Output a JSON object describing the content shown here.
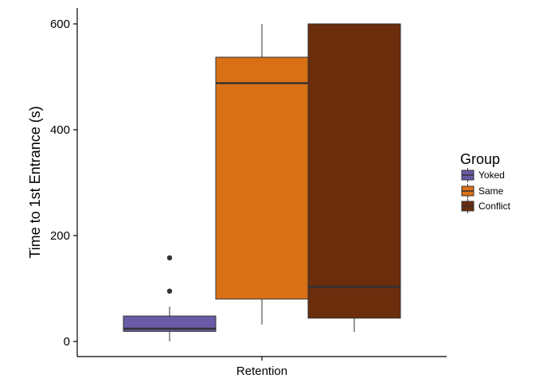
{
  "chart_data": {
    "type": "box",
    "title": "",
    "xlabel": "",
    "ylabel": "Time to 1st Entrance (s)",
    "categories": [
      "Retention"
    ],
    "ylim": [
      -25,
      630
    ],
    "yticks": [
      0,
      200,
      400,
      600
    ],
    "grid": false,
    "legend": {
      "title": "Group",
      "position": "right"
    },
    "series": [
      {
        "name": "Yoked",
        "color": "#6a5aa6",
        "whisker_low": 0,
        "q1": 19,
        "median": 24,
        "q3": 48,
        "whisker_high": 66,
        "outliers": [
          95,
          158
        ]
      },
      {
        "name": "Same",
        "color": "#d97016",
        "whisker_low": 32,
        "q1": 80,
        "median": 488,
        "q3": 537,
        "whisker_high": 600,
        "outliers": []
      },
      {
        "name": "Conflict",
        "color": "#6b2d0c",
        "whisker_low": 18,
        "q1": 44,
        "median": 103,
        "q3": 600,
        "whisker_high": 600,
        "outliers": []
      }
    ]
  }
}
